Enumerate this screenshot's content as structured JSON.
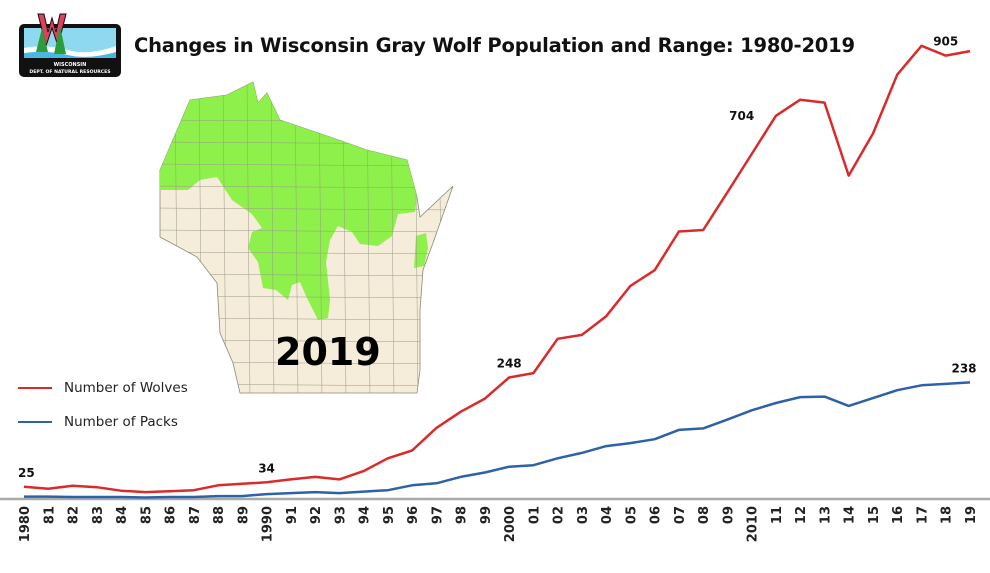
{
  "title": "Changes in Wisconsin Gray Wolf Population and Range: 1980-2019",
  "logo": {
    "text_line1": "WISCONSIN",
    "text_line2": "DEPT. OF NATURAL RESOURCES",
    "letter": "W"
  },
  "map": {
    "label": "2019",
    "range_color": "#8ef04a",
    "land_color": "#f5ecd9"
  },
  "colors": {
    "wolves": "#d92b2b",
    "packs": "#2e62a8"
  },
  "chart_data": {
    "type": "line",
    "title": "Changes in Wisconsin Gray Wolf Population and Range: 1980-2019",
    "x": [
      1980,
      1981,
      1982,
      1983,
      1984,
      1985,
      1986,
      1987,
      1988,
      1989,
      1990,
      1991,
      1992,
      1993,
      1994,
      1995,
      1996,
      1997,
      1998,
      1999,
      2000,
      2001,
      2002,
      2003,
      2004,
      2005,
      2006,
      2007,
      2008,
      2009,
      2010,
      2011,
      2012,
      2013,
      2014,
      2015,
      2016,
      2017,
      2018,
      2019
    ],
    "tick_labels": [
      "1980",
      "81",
      "82",
      "83",
      "84",
      "85",
      "86",
      "87",
      "88",
      "89",
      "1990",
      "91",
      "92",
      "93",
      "94",
      "95",
      "96",
      "97",
      "98",
      "99",
      "2000",
      "01",
      "02",
      "03",
      "04",
      "05",
      "06",
      "07",
      "08",
      "09",
      "2010",
      "11",
      "12",
      "13",
      "14",
      "15",
      "16",
      "17",
      "18",
      "19"
    ],
    "ylim": [
      0,
      1000
    ],
    "grid": false,
    "legend_placement": "left",
    "series": [
      {
        "name": "Number of Wolves",
        "color": "#d92b2b",
        "values": [
          25,
          21,
          27,
          24,
          17,
          14,
          16,
          18,
          28,
          31,
          34,
          40,
          45,
          40,
          57,
          83,
          99,
          145,
          178,
          205,
          248,
          257,
          327,
          335,
          373,
          435,
          467,
          546,
          549,
          626,
          704,
          782,
          815,
          809,
          660,
          746,
          866,
          925,
          905,
          914
        ]
      },
      {
        "name": "Number of Packs",
        "color": "#2e62a8",
        "values": [
          5,
          5,
          4,
          4,
          4,
          3,
          4,
          4,
          6,
          6,
          10,
          12,
          14,
          12,
          15,
          18,
          28,
          32,
          45,
          54,
          66,
          69,
          83,
          94,
          108,
          114,
          122,
          141,
          144,
          162,
          181,
          196,
          208,
          209,
          190,
          206,
          222,
          232,
          235,
          238
        ]
      }
    ],
    "data_labels": [
      {
        "series": "Number of Wolves",
        "x": 1980,
        "text": "25"
      },
      {
        "series": "Number of Wolves",
        "x": 1990,
        "text": "34"
      },
      {
        "series": "Number of Wolves",
        "x": 2000,
        "text": "248"
      },
      {
        "series": "Number of Wolves",
        "x": 2010,
        "text": "704"
      },
      {
        "series": "Number of Wolves",
        "x": 2018,
        "text": "905"
      },
      {
        "series": "Number of Packs",
        "x": 2019,
        "text": "238"
      }
    ]
  }
}
